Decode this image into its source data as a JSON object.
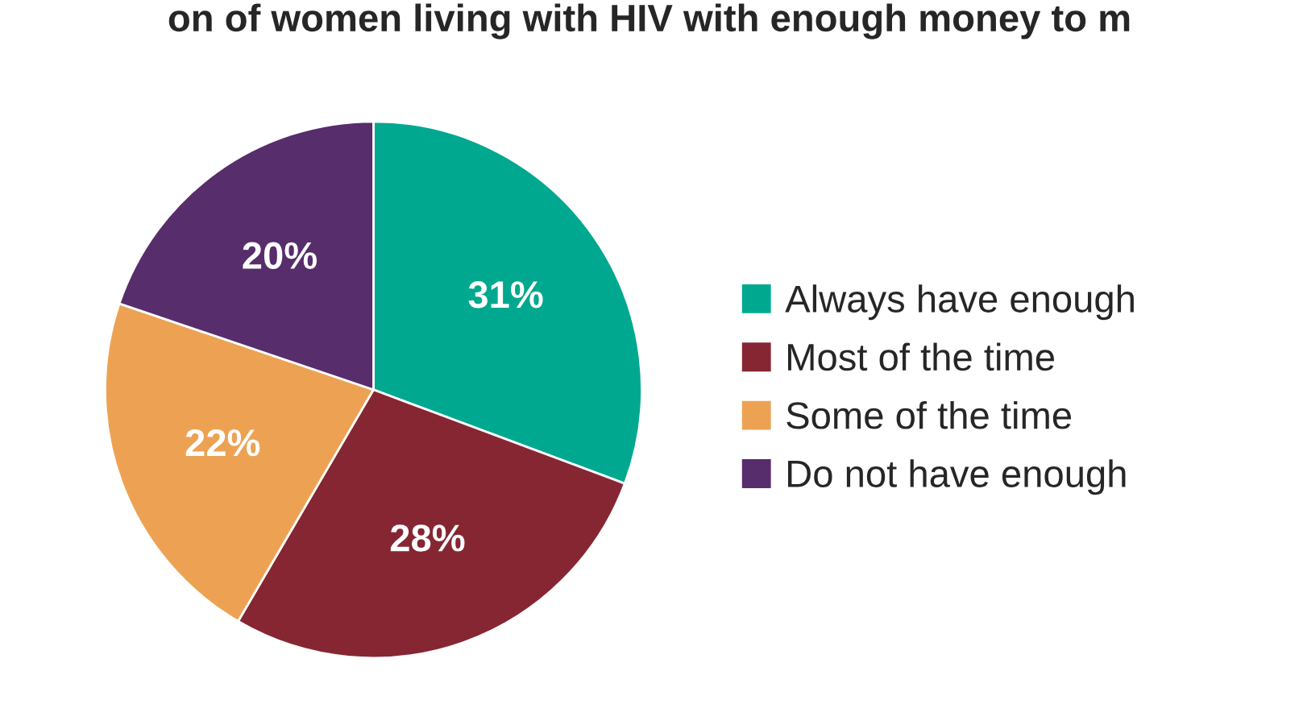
{
  "chart_data": {
    "type": "pie",
    "title": "on of women living with HIV with enough money to m",
    "categories": [
      "Always have enough",
      "Most of the time",
      "Some of the time",
      "Do not have enough"
    ],
    "values": [
      31,
      28,
      22,
      20
    ],
    "colors": [
      "#00a88f",
      "#862633",
      "#eda253",
      "#572d6b"
    ],
    "value_labels": [
      "31%",
      "28%",
      "22%",
      "20%"
    ],
    "legend": "right"
  }
}
